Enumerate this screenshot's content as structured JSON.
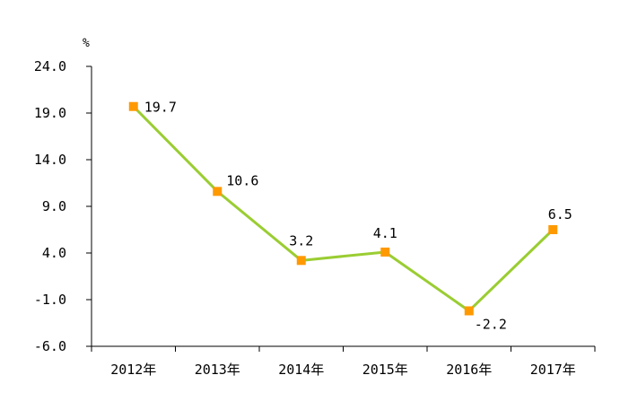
{
  "chart_data": {
    "type": "line",
    "title": "",
    "xlabel": "",
    "ylabel": "%",
    "categories": [
      "2012年",
      "2013年",
      "2014年",
      "2015年",
      "2016年",
      "2017年"
    ],
    "series": [
      {
        "values": [
          19.7,
          10.6,
          3.2,
          4.1,
          -2.2,
          6.5
        ],
        "data_labels": [
          "19.7",
          "10.6",
          "3.2",
          "4.1",
          "-2.2",
          "6.5"
        ]
      }
    ],
    "y_ticks": [
      24.0,
      19.0,
      14.0,
      9.0,
      4.0,
      -1.0,
      -6.0
    ],
    "y_tick_labels": [
      "24.0",
      "19.0",
      "14.0",
      "9.0",
      "4.0",
      "-1.0",
      "-6.0"
    ],
    "ylim": [
      -6.0,
      24.0
    ],
    "grid": false,
    "legend": "none",
    "colors": {
      "line": "#9ACD32",
      "marker": "#FF9900",
      "axis": "#000000",
      "background": "#ffffff"
    }
  }
}
